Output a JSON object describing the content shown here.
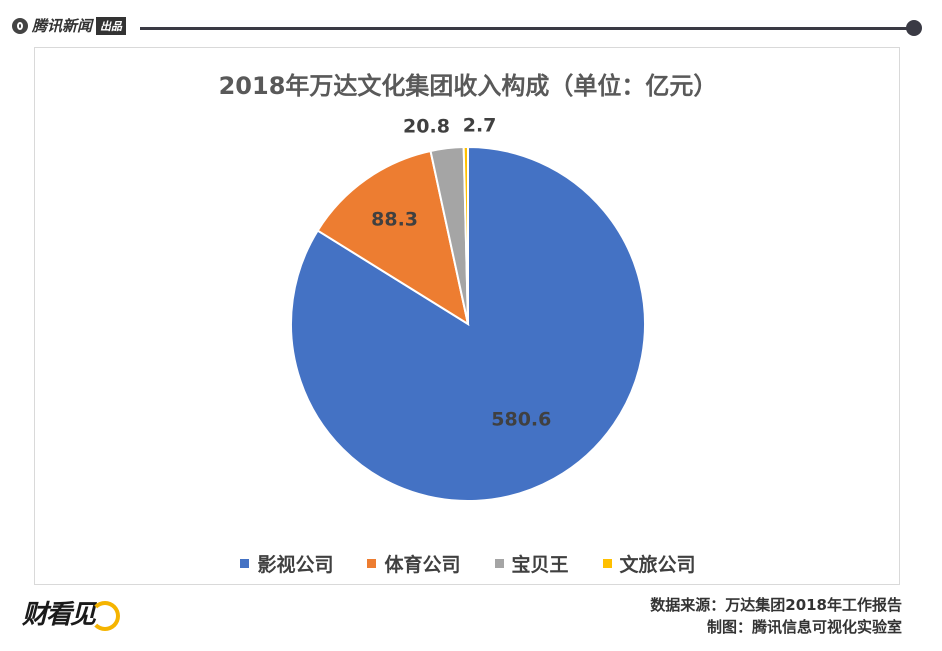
{
  "header": {
    "brand": "腾讯新闻",
    "brand_tag": "出品"
  },
  "chart_data": {
    "type": "pie",
    "title": "2018年万达文化集团收入构成（单位：亿元）",
    "legend_position": "bottom",
    "slices": [
      {
        "label": "影视公司",
        "value": 580.6,
        "value_label": "580.6",
        "color": "#4472c4"
      },
      {
        "label": "体育公司",
        "value": 88.3,
        "value_label": "88.3",
        "color": "#ed7d31"
      },
      {
        "label": "宝贝王",
        "value": 20.8,
        "value_label": "20.8",
        "color": "#a5a5a5"
      },
      {
        "label": "文旅公司",
        "value": 2.7,
        "value_label": "2.7",
        "color": "#ffc000"
      }
    ]
  },
  "footer": {
    "logo": "财看见",
    "source": "数据来源：万达集团2018年工作报告",
    "credit": "制图：腾讯信息可视化实验室"
  }
}
